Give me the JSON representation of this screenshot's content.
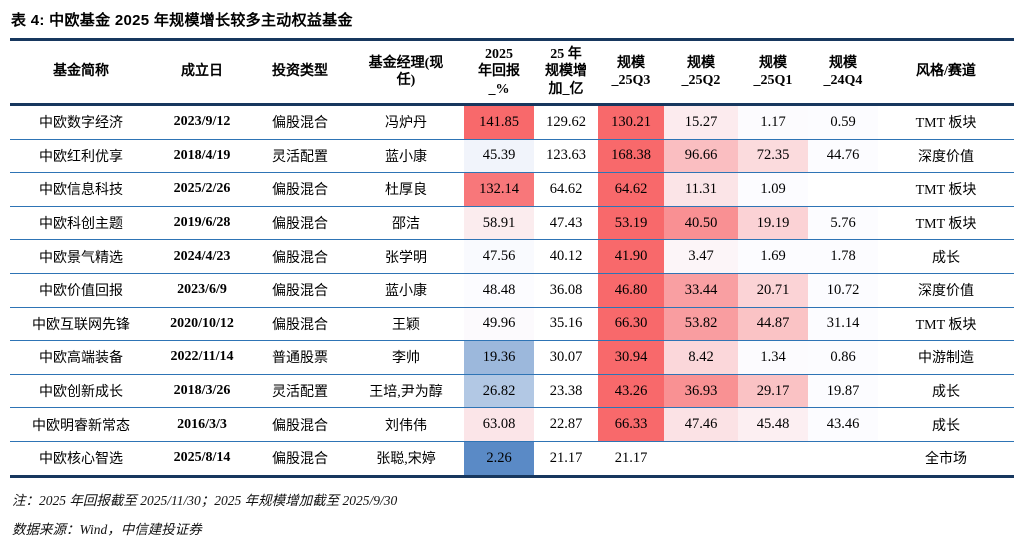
{
  "chart_data": {
    "type": "table",
    "title": "表 4: 中欧基金 2025 年规模增长较多主动权益基金",
    "columns": [
      "基金简称",
      "成立日",
      "投资类型",
      "基金经理(现任)",
      "2025年回报_%",
      "25年规模增加_亿",
      "规模_25Q3",
      "规模_25Q2",
      "规模_25Q1",
      "规模_24Q4",
      "风格/赛道"
    ],
    "column_headers": [
      "基金简称",
      "成立日",
      "投资类型",
      "基金经理(现\n任)",
      "2025\n年回报\n_%",
      "25 年\n规模增\n加_亿",
      "规模\n_25Q3",
      "规模\n_25Q2",
      "规模\n_25Q1",
      "规模\n_24Q4",
      "风格/赛道"
    ],
    "rows": [
      [
        "中欧数字经济",
        "2023/9/12",
        "偏股混合",
        "冯炉丹",
        {
          "t": "141.85",
          "bg": "#F8696B"
        },
        "129.62",
        {
          "t": "130.21",
          "bg": "#F8696B"
        },
        {
          "t": "15.27",
          "bg": "#FCEBEE"
        },
        {
          "t": "1.17",
          "bg": "#FCFBFE"
        },
        {
          "t": "0.59",
          "bg": "#FCFCFF"
        },
        "TMT 板块"
      ],
      [
        "中欧红利优享",
        "2018/4/19",
        "灵活配置",
        "蓝小康",
        {
          "t": "45.39",
          "bg": "#F1F4FB"
        },
        "123.63",
        {
          "t": "168.38",
          "bg": "#F8696B"
        },
        {
          "t": "96.66",
          "bg": "#FABEC1"
        },
        {
          "t": "72.35",
          "bg": "#FBDBDD"
        },
        {
          "t": "44.76",
          "bg": "#FCFCFF"
        },
        "深度价值"
      ],
      [
        "中欧信息科技",
        "2025/2/26",
        "偏股混合",
        "杜厚良",
        {
          "t": "132.14",
          "bg": "#F8777A"
        },
        "64.62",
        {
          "t": "64.62",
          "bg": "#F8696B"
        },
        {
          "t": "11.31",
          "bg": "#FBE4E7"
        },
        {
          "t": "1.09",
          "bg": "#FCFCFF"
        },
        "",
        "TMT 板块"
      ],
      [
        "中欧科创主题",
        "2019/6/28",
        "偏股混合",
        "邵洁",
        {
          "t": "58.91",
          "bg": "#FBECEE"
        },
        "47.43",
        {
          "t": "53.19",
          "bg": "#F8696B"
        },
        {
          "t": "40.50",
          "bg": "#F99093"
        },
        {
          "t": "19.19",
          "bg": "#FBD2D5"
        },
        {
          "t": "5.76",
          "bg": "#FCFCFF"
        },
        "TMT 板块"
      ],
      [
        "中欧景气精选",
        "2024/4/23",
        "偏股混合",
        "张学明",
        {
          "t": "47.56",
          "bg": "#F9FAFE"
        },
        "40.12",
        {
          "t": "41.90",
          "bg": "#F8696B"
        },
        {
          "t": "3.47",
          "bg": "#FCF5F8"
        },
        {
          "t": "1.69",
          "bg": "#FCFCFF"
        },
        {
          "t": "1.78",
          "bg": "#FCFCFF"
        },
        "成长"
      ],
      [
        "中欧价值回报",
        "2023/6/9",
        "偏股混合",
        "蓝小康",
        {
          "t": "48.48",
          "bg": "#FCFCFF"
        },
        "36.08",
        {
          "t": "46.80",
          "bg": "#F8696B"
        },
        {
          "t": "33.44",
          "bg": "#F99FA2"
        },
        {
          "t": "20.71",
          "bg": "#FBD3D6"
        },
        {
          "t": "10.72",
          "bg": "#FCFCFF"
        },
        "深度价值"
      ],
      [
        "中欧互联网先锋",
        "2020/10/12",
        "偏股混合",
        "王颖",
        {
          "t": "49.96",
          "bg": "#FCFAFD"
        },
        "35.16",
        {
          "t": "66.30",
          "bg": "#F8696B"
        },
        {
          "t": "53.82",
          "bg": "#F99DA0"
        },
        {
          "t": "44.87",
          "bg": "#FAC3C5"
        },
        {
          "t": "31.14",
          "bg": "#FCFCFF"
        },
        "TMT 板块"
      ],
      [
        "中欧高端装备",
        "2022/11/14",
        "普通股票",
        "李帅",
        {
          "t": "19.36",
          "bg": "#9CB8DC"
        },
        "30.07",
        {
          "t": "30.94",
          "bg": "#F8696B"
        },
        {
          "t": "8.42",
          "bg": "#FBD7DA"
        },
        {
          "t": "1.34",
          "bg": "#FCFBFE"
        },
        {
          "t": "0.86",
          "bg": "#FCFCFF"
        },
        "中游制造"
      ],
      [
        "中欧创新成长",
        "2018/3/26",
        "灵活配置",
        "王培,尹为醇",
        {
          "t": "26.82",
          "bg": "#B2C8E4"
        },
        "23.38",
        {
          "t": "43.26",
          "bg": "#F8696B"
        },
        {
          "t": "36.93",
          "bg": "#F99193"
        },
        {
          "t": "29.17",
          "bg": "#FAC2C4"
        },
        {
          "t": "19.87",
          "bg": "#FCFCFF"
        },
        "成长"
      ],
      [
        "中欧明睿新常态",
        "2016/3/3",
        "偏股混合",
        "刘伟伟",
        {
          "t": "63.08",
          "bg": "#FBE5E8"
        },
        "22.87",
        {
          "t": "66.33",
          "bg": "#F8696B"
        },
        {
          "t": "47.46",
          "bg": "#FBE2E5"
        },
        {
          "t": "45.48",
          "bg": "#FCEFF2"
        },
        {
          "t": "43.46",
          "bg": "#FCFCFF"
        },
        "成长"
      ],
      [
        "中欧核心智选",
        "2025/8/14",
        "偏股混合",
        "张聪,宋婷",
        {
          "t": "2.26",
          "bg": "#5A8AC6"
        },
        "21.17",
        "21.17",
        "",
        "",
        "",
        "全市场"
      ]
    ],
    "legend_note": "heatmap: return column scaled red(high)/white(mid)/blue(low); 规模 columns scaled per-row white(min)→red(max)"
  },
  "footer": {
    "note": "注：2025 年回报截至 2025/11/30；2025 年规模增加截至 2025/9/30",
    "source": "数据来源：Wind，中信建投证券"
  },
  "colors": {
    "thick_rule": "#17375E",
    "thin_rule": "#2E74B5",
    "heat_red_max": "#F8696B",
    "heat_blue_min": "#5A8AC6",
    "heat_mid_white": "#FCFCFF"
  }
}
